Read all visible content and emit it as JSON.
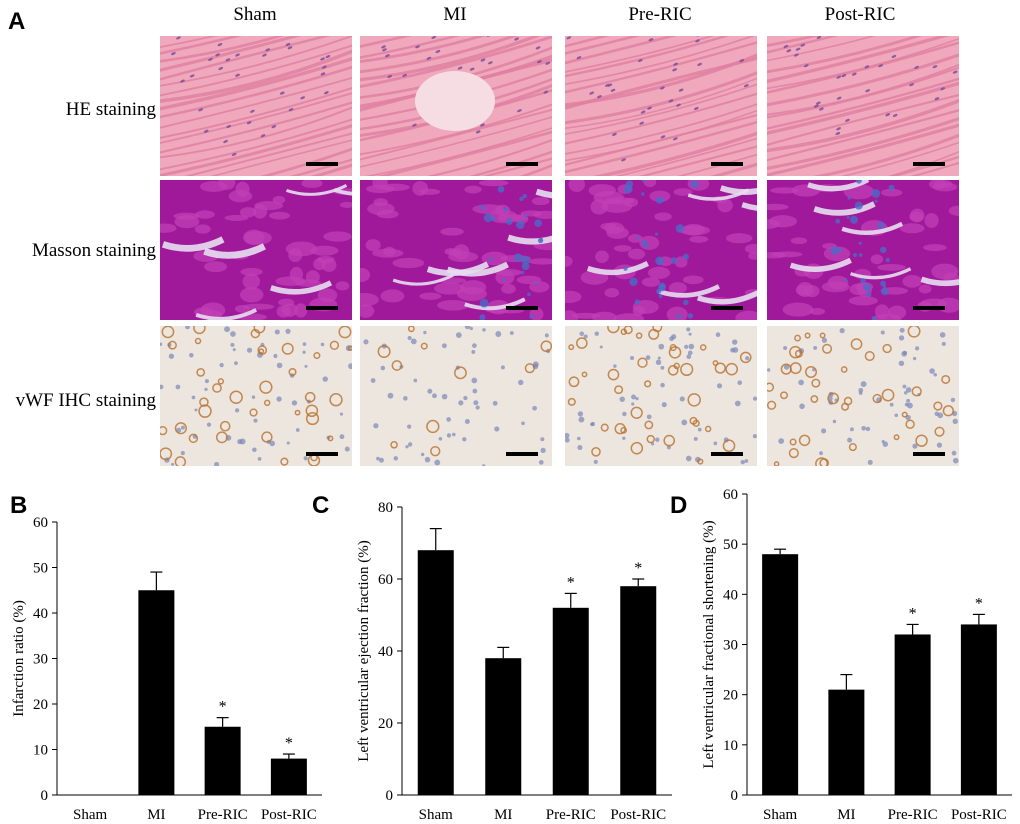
{
  "figure": {
    "panel_a_letter": "A",
    "columns": [
      "Sham",
      "MI",
      "Pre-RIC",
      "Post-RIC"
    ],
    "rows": [
      "HE staining",
      "Masson staining",
      "vWF IHC staining"
    ],
    "colors": {
      "he_background": "#f0a8bc",
      "he_fiber": "#e07ea0",
      "he_nucleus": "#7a4f9a",
      "masson_background": "#a0199a",
      "masson_fiber": "#c23fb6",
      "masson_collagen": "#4a6bc8",
      "ihc_background": "#ece6de",
      "ihc_stain": "#b9712e",
      "ihc_nucleus": "#7a86b8",
      "bar": "#000000"
    }
  },
  "chart_data": [
    {
      "panel": "B",
      "type": "bar",
      "categories": [
        "Sham",
        "MI",
        "Pre-RIC",
        "Post-RIC"
      ],
      "values": [
        0,
        45,
        15,
        8
      ],
      "errors": [
        0,
        4,
        2,
        1
      ],
      "significance": [
        "",
        "",
        "*",
        "*"
      ],
      "ylabel": "Infarction ratio (%)",
      "xlabel": "",
      "ylim": [
        0,
        60
      ],
      "yticks": [
        0,
        10,
        20,
        30,
        40,
        50,
        60
      ],
      "grid": false
    },
    {
      "panel": "C",
      "type": "bar",
      "categories": [
        "Sham",
        "MI",
        "Pre-RIC",
        "Post-RIC"
      ],
      "values": [
        68,
        38,
        52,
        58
      ],
      "errors": [
        6,
        3,
        4,
        2
      ],
      "significance": [
        "",
        "",
        "*",
        "*"
      ],
      "ylabel": "Left ventricular ejection fraction (%)",
      "xlabel": "",
      "ylim": [
        0,
        80
      ],
      "yticks": [
        0,
        20,
        40,
        60,
        80
      ],
      "grid": false
    },
    {
      "panel": "D",
      "type": "bar",
      "categories": [
        "Sham",
        "MI",
        "Pre-RIC",
        "Post-RIC"
      ],
      "values": [
        48,
        21,
        32,
        34
      ],
      "errors": [
        1,
        3,
        2,
        2
      ],
      "significance": [
        "",
        "",
        "*",
        "*"
      ],
      "ylabel": "Left ventricular fractional shortening (%)",
      "xlabel": "",
      "ylim": [
        0,
        60
      ],
      "yticks": [
        0,
        10,
        20,
        30,
        40,
        50,
        60
      ],
      "grid": false
    }
  ]
}
